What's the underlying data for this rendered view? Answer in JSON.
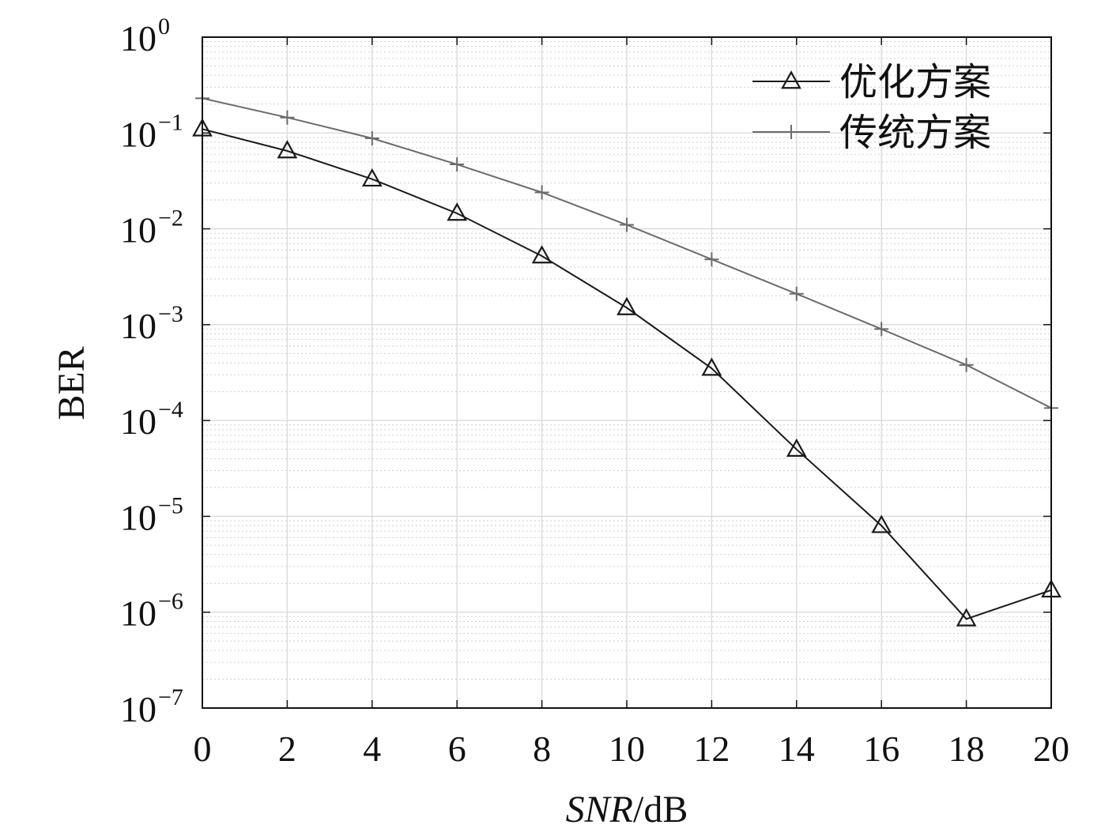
{
  "chart_data": {
    "type": "line",
    "xlabel_italic": "SNR",
    "xlabel_unit": "/dB",
    "ylabel": "BER",
    "x": [
      0,
      2,
      4,
      6,
      8,
      10,
      12,
      14,
      16,
      18,
      20
    ],
    "xlim": [
      0,
      20
    ],
    "x_ticks": [
      "0",
      "2",
      "4",
      "6",
      "8",
      "10",
      "12",
      "14",
      "16",
      "18",
      "20"
    ],
    "yscale": "log",
    "ylim": [
      1e-07,
      1
    ],
    "y_tick_base": "10",
    "y_tick_exponents": [
      "0",
      "−1",
      "−2",
      "−3",
      "−4",
      "−5",
      "−6",
      "−7"
    ],
    "grid": true,
    "legend_position": "top-right",
    "series": [
      {
        "name": "优化方案",
        "marker": "triangle",
        "color": "#1a1a1a",
        "values": [
          0.11,
          0.065,
          0.033,
          0.0145,
          0.0052,
          0.0015,
          0.00035,
          5e-05,
          8e-06,
          8.5e-07,
          1.7e-06
        ]
      },
      {
        "name": "传统方案",
        "marker": "plus",
        "color": "#6b6b6b",
        "values": [
          0.23,
          0.145,
          0.088,
          0.047,
          0.024,
          0.011,
          0.0048,
          0.0021,
          0.0009,
          0.00038,
          0.000135
        ]
      }
    ]
  }
}
